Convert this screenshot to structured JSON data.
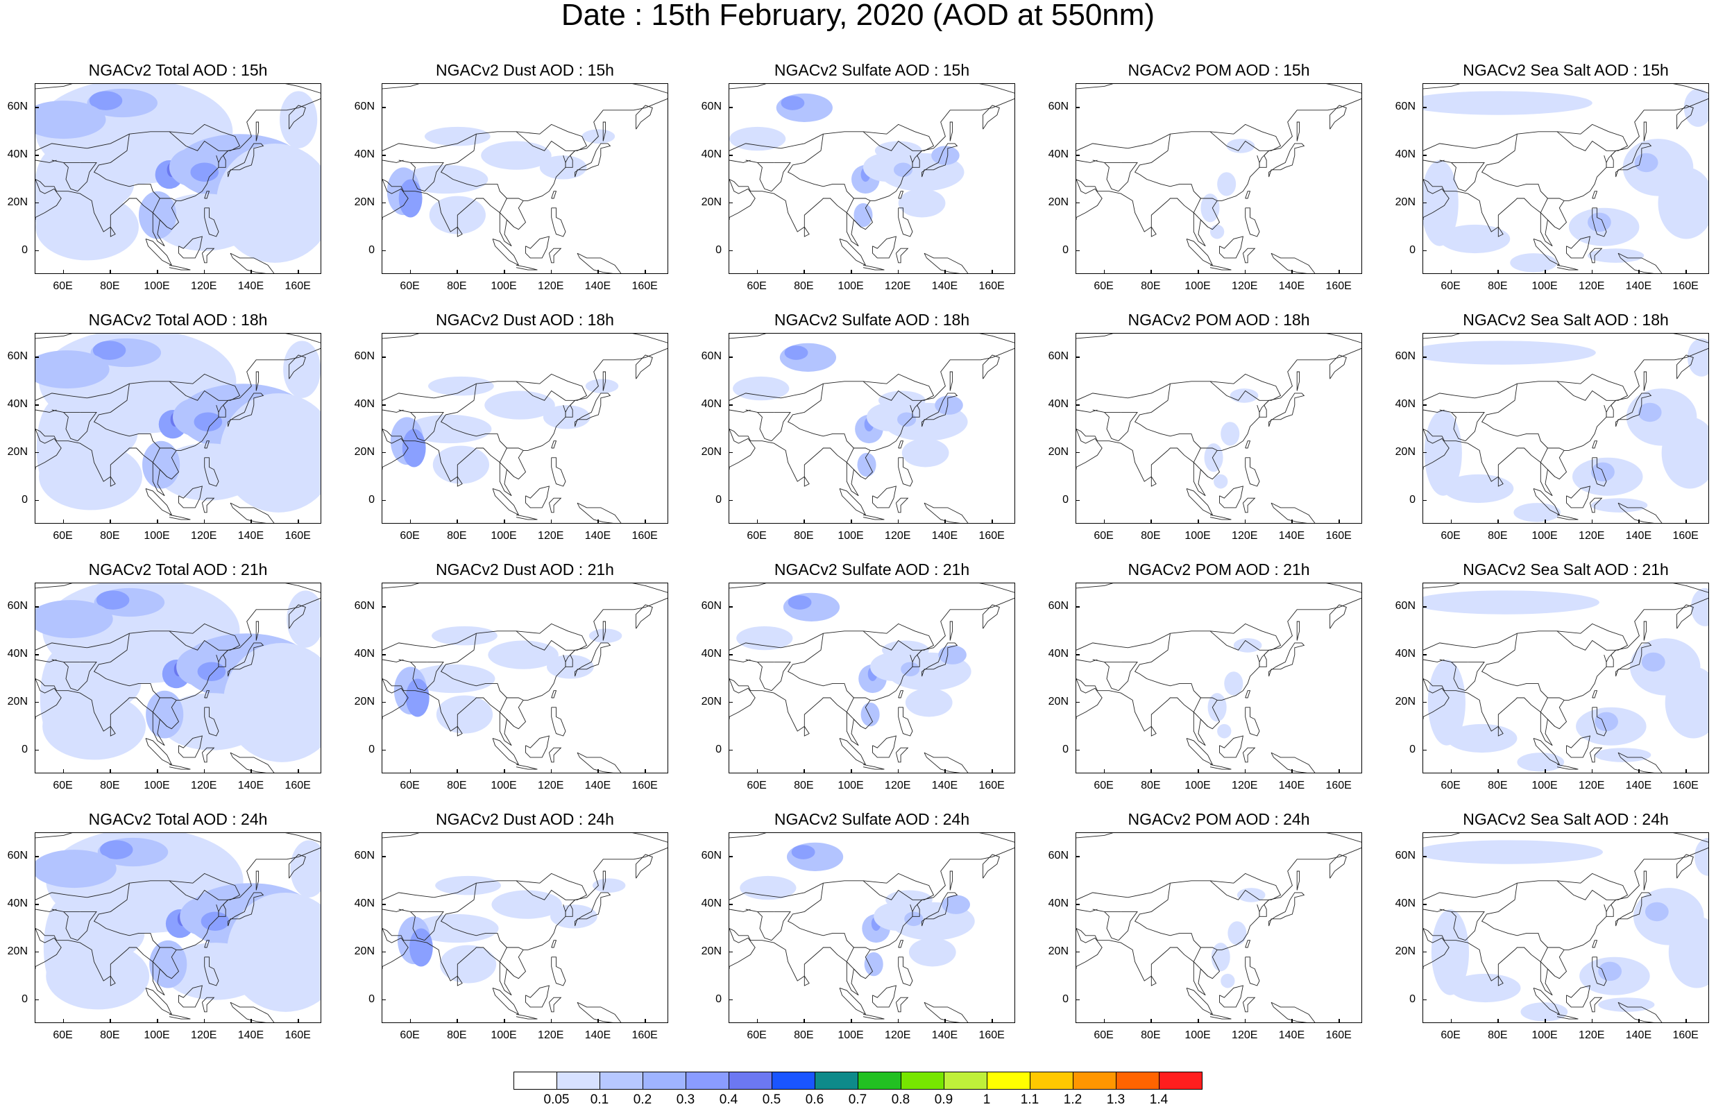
{
  "title": "Date : 15th February, 2020 (AOD at 550nm)",
  "lat_labels": [
    "60N",
    "40N",
    "20N",
    "0"
  ],
  "lon_labels": [
    "60E",
    "80E",
    "100E",
    "120E",
    "140E",
    "160E"
  ],
  "rows": [
    {
      "hour": "15h",
      "titles": [
        "NGACv2 Total AOD : 15h",
        "NGACv2 Dust AOD : 15h",
        "NGACv2 Sulfate AOD : 15h",
        "NGACv2 POM AOD : 15h",
        "NGACv2 Sea Salt AOD : 15h"
      ]
    },
    {
      "hour": "18h",
      "titles": [
        "NGACv2 Total AOD : 18h",
        "NGACv2 Dust AOD : 18h",
        "NGACv2 Sulfate AOD : 18h",
        "NGACv2 POM AOD : 18h",
        "NGACv2 Sea Salt AOD : 18h"
      ]
    },
    {
      "hour": "21h",
      "titles": [
        "NGACv2 Total AOD : 21h",
        "NGACv2 Dust AOD : 21h",
        "NGACv2 Sulfate AOD : 21h",
        "NGACv2 POM AOD : 21h",
        "NGACv2 Sea Salt AOD : 21h"
      ]
    },
    {
      "hour": "24h",
      "titles": [
        "NGACv2 Total AOD : 24h",
        "NGACv2 Dust AOD : 24h",
        "NGACv2 Sulfate AOD : 24h",
        "NGACv2 POM AOD : 24h",
        "NGACv2 Sea Salt  AOD : 24h"
      ]
    }
  ],
  "colorbar": {
    "labels": [
      "0.05",
      "0.1",
      "0.2",
      "0.3",
      "0.4",
      "0.5",
      "0.6",
      "0.7",
      "0.8",
      "0.9",
      "1",
      "1.1",
      "1.2",
      "1.3",
      "1.4"
    ],
    "colors": [
      "#ffffff",
      "#d7e1ff",
      "#b7c8ff",
      "#9fb4ff",
      "#8a9cff",
      "#6c78f2",
      "#1a55ff",
      "#0e8a8a",
      "#22c022",
      "#77e600",
      "#bff03a",
      "#ffff00",
      "#ffc800",
      "#ff9600",
      "#ff6400",
      "#ff1e1e"
    ]
  }
}
